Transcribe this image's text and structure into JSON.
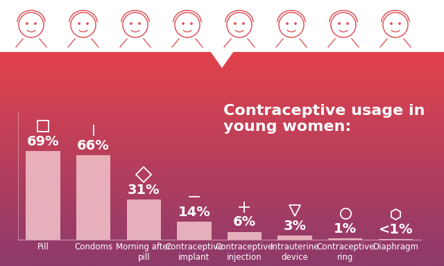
{
  "chart_data": {
    "type": "bar",
    "title": "Contraceptive usage in young women:",
    "categories": [
      "Pill",
      "Condoms",
      "Morning after pill",
      "Contraceptive implant",
      "Contraceptive injection",
      "Intrauterine device",
      "Contraceptive ring",
      "Diaphragm"
    ],
    "values": [
      69,
      66,
      31,
      14,
      6,
      3,
      1,
      0.5
    ],
    "value_labels": [
      "69%",
      "66%",
      "31%",
      "14%",
      "6%",
      "3%",
      "1%",
      "<1%"
    ],
    "color": "#f3c4cb",
    "ylim": [
      0,
      100
    ],
    "yticks": [],
    "grid": false,
    "data_labels": true,
    "tick_labels": "x"
  }
}
